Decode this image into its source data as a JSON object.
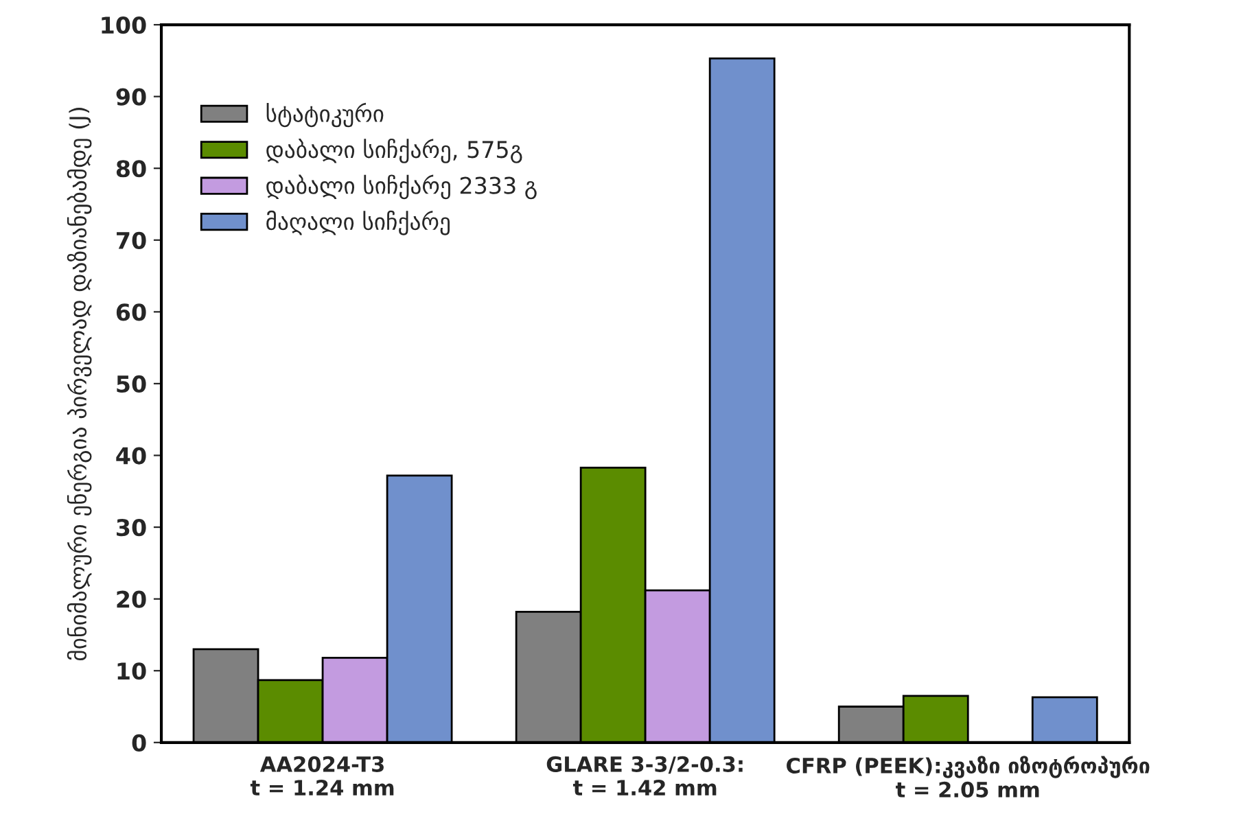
{
  "chart_data": {
    "type": "bar",
    "ylabel": "მინიმალური ენერგია პირველად დაზიანებამდე (J)",
    "categories": [
      "AA2024-T3\nt = 1.24 mm",
      "GLARE 3-3/2-0.3:\nt = 1.42 mm",
      "CFRP (PEEK):კვაზი იზოტროპური\nt = 2.05 mm"
    ],
    "series": [
      {
        "name": "სტატიკური",
        "color": "#808080",
        "values": [
          13,
          18.2,
          5
        ]
      },
      {
        "name": "დაბალი სიჩქარე, 575გ",
        "color": "#5b8c00",
        "values": [
          8.7,
          38.3,
          6.5
        ]
      },
      {
        "name": "დაბალი სიჩქარე 2333 გ",
        "color": "#c39be0",
        "values": [
          11.8,
          21.2,
          null
        ]
      },
      {
        "name": "მაღალი სიჩქარე",
        "color": "#7090cc",
        "values": [
          37.2,
          95.3,
          6.3
        ]
      }
    ],
    "ylim": [
      0,
      100
    ],
    "yticks": [
      0,
      10,
      20,
      30,
      40,
      50,
      60,
      70,
      80,
      90,
      100
    ],
    "grid": false,
    "legend": "top left"
  }
}
